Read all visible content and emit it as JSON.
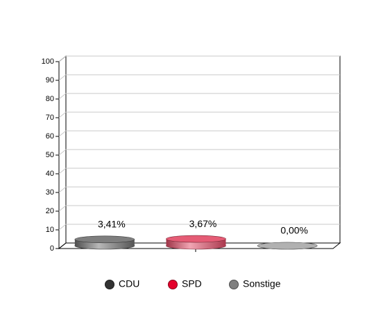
{
  "chart_data": {
    "type": "bar3d",
    "categories": [
      "CDU",
      "SPD",
      "Sonstige"
    ],
    "values": [
      3.41,
      3.67,
      0.0
    ],
    "value_labels": [
      "3,41%",
      "3,67%",
      "0,00%"
    ],
    "colors": [
      "#333333",
      "#e4002b",
      "#808080"
    ],
    "bar_colors": [
      "#707070",
      "#e24a66",
      "#a8a8a8"
    ],
    "ylim": [
      0,
      100
    ],
    "yticks": [
      0,
      10,
      20,
      30,
      40,
      50,
      60,
      70,
      80,
      90,
      100
    ],
    "grid": true
  }
}
